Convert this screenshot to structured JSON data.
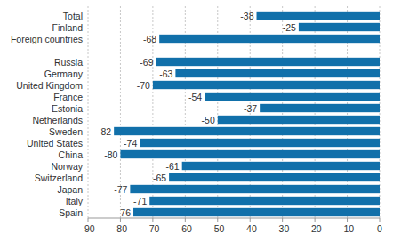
{
  "chart_data": {
    "type": "bar",
    "orientation": "horizontal",
    "categories": [
      "Total",
      "Finland",
      "Foreign countries",
      null,
      "Russia",
      "Germany",
      "United Kingdom",
      "France",
      "Estonia",
      "Netherlands",
      "Sweden",
      "United States",
      "China",
      "Norway",
      "Switzerland",
      "Japan",
      "Italy",
      "Spain"
    ],
    "values": [
      -38,
      -25,
      -68,
      null,
      -69,
      -63,
      -70,
      -54,
      -37,
      -50,
      -82,
      -74,
      -80,
      -61,
      -65,
      -77,
      -71,
      -76
    ],
    "color": "#1170aa",
    "xlim": [
      -90,
      0
    ],
    "xticks": [
      -90,
      -80,
      -70,
      -60,
      -50,
      -40,
      -30,
      -20,
      -10,
      0
    ],
    "grid": true,
    "data_labels": true
  }
}
